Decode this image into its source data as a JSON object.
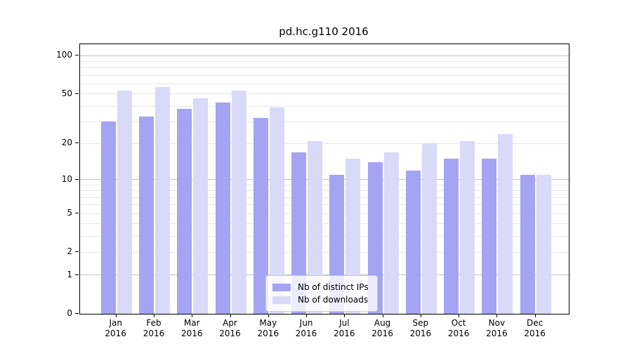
{
  "title": "pd.hc.g110 2016",
  "chart_data": {
    "type": "bar",
    "title": "pd.hc.g110 2016",
    "categories": [
      "Jan",
      "Feb",
      "Mar",
      "Apr",
      "May",
      "Jun",
      "Jul",
      "Aug",
      "Sep",
      "Oct",
      "Nov",
      "Dec"
    ],
    "x_tick_line2": "2016",
    "series": [
      {
        "name": "Nb of distinct IPs",
        "color": "#a4a4f2",
        "values": [
          30,
          33,
          38,
          43,
          32,
          17,
          11,
          14,
          12,
          15,
          15,
          11
        ]
      },
      {
        "name": "Nb of downloads",
        "color": "#d9d9f8",
        "values": [
          53,
          57,
          46,
          53,
          39,
          21,
          15,
          17,
          20,
          21,
          24,
          11
        ]
      }
    ],
    "yscale": "log1p",
    "ylim": [
      0,
      123
    ],
    "y_ticks": [
      0,
      1,
      2,
      5,
      10,
      20,
      50,
      100
    ],
    "y_major_gridlines": [
      1,
      10,
      100
    ],
    "y_minor_gridlines": [
      2,
      3,
      4,
      5,
      6,
      7,
      8,
      9,
      20,
      30,
      40,
      50,
      60,
      70,
      80,
      90
    ],
    "grid": true,
    "legend_position": "lower center",
    "colors": {
      "minor_grid": "#e8e8e8",
      "major_grid": "#c2c2c2",
      "axis": "#000000",
      "legend_border": "#cccccc"
    }
  }
}
